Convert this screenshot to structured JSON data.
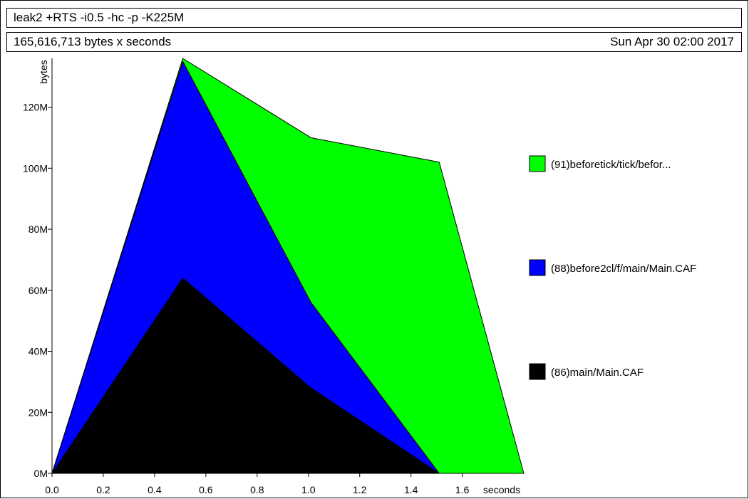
{
  "header": {
    "command": "leak2 +RTS -i0.5 -hc -p -K225M",
    "summary": "165,616,713 bytes x seconds",
    "date": "Sun Apr 30 02:00 2017"
  },
  "chart_data": {
    "type": "area",
    "stacked": true,
    "title": "leak2 +RTS -i0.5 -hc -p -K225M",
    "xlabel": "seconds",
    "ylabel": "bytes",
    "x": [
      0.0,
      0.51,
      1.01,
      1.51,
      1.84
    ],
    "xlim": [
      0.0,
      1.84
    ],
    "ylim": [
      0,
      136000000
    ],
    "xticks": [
      0.0,
      0.2,
      0.4,
      0.6,
      0.8,
      1.0,
      1.2,
      1.4,
      1.6
    ],
    "xtick_labels": [
      "0.0",
      "0.2",
      "0.4",
      "0.6",
      "0.8",
      "1.0",
      "1.2",
      "1.4",
      "1.6"
    ],
    "yticks": [
      0,
      20000000,
      40000000,
      60000000,
      80000000,
      100000000,
      120000000
    ],
    "ytick_labels": [
      "0M",
      "20M",
      "40M",
      "60M",
      "80M",
      "100M",
      "120M"
    ],
    "grid": false,
    "legend_position": "right",
    "series": [
      {
        "name": "(86)main/Main.CAF",
        "color": "#000000",
        "values": [
          0,
          64000000,
          28000000,
          0,
          0
        ]
      },
      {
        "name": "(88)before2cl/f/main/Main.CAF",
        "color": "#0000ff",
        "values": [
          0,
          71000000,
          28000000,
          0,
          0
        ]
      },
      {
        "name": "(91)beforetick/tick/befor...",
        "color": "#00ff00",
        "values": [
          0,
          1000000,
          54000000,
          102000000,
          0
        ]
      }
    ]
  }
}
